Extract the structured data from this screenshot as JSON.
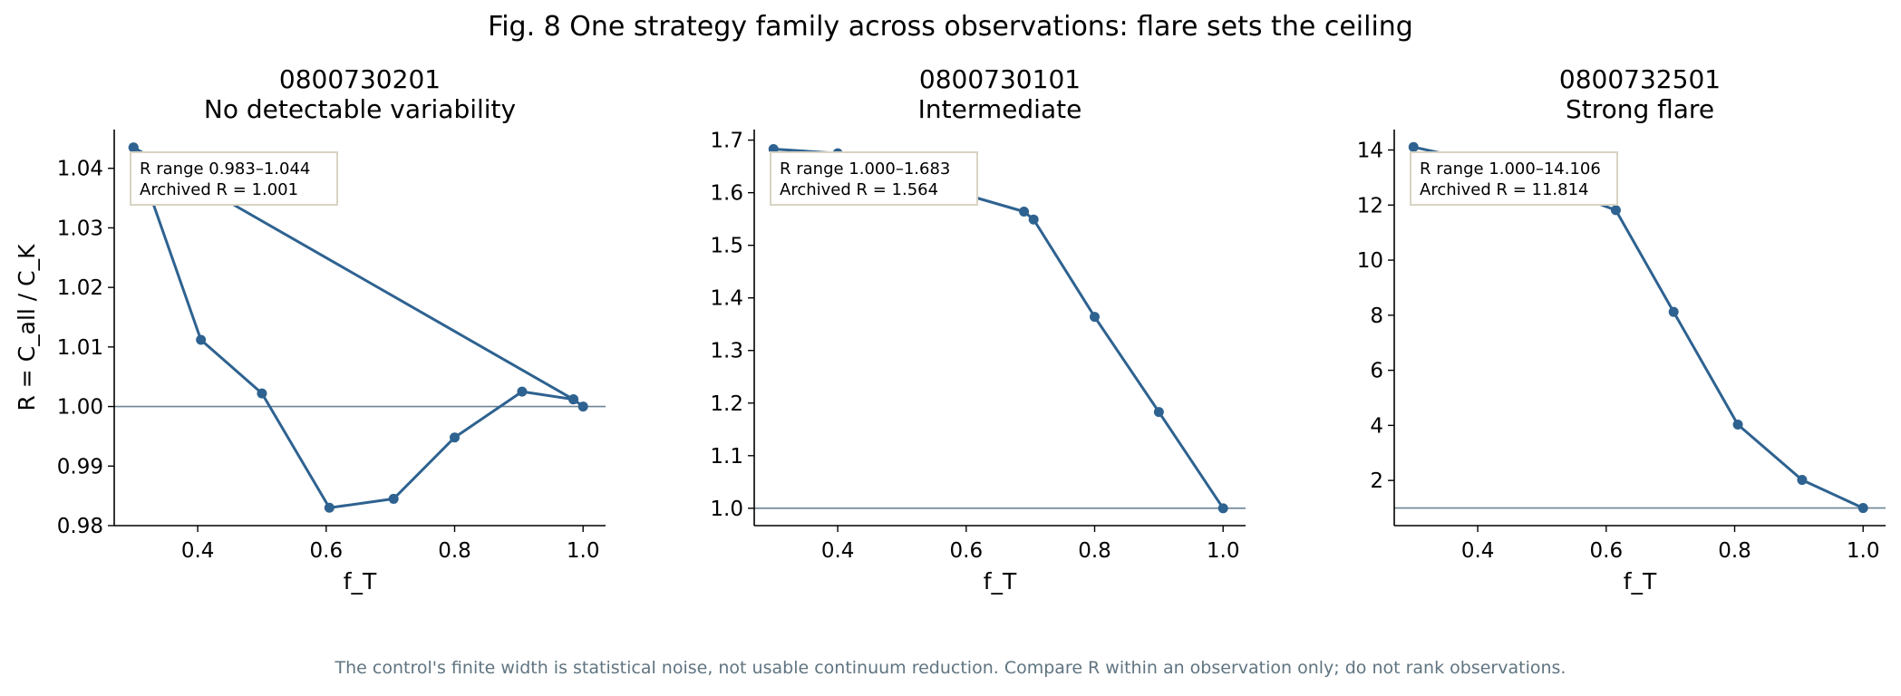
{
  "figure": {
    "title": "Fig. 8  One strategy family across observations: flare sets the ceiling",
    "footer": "The control's finite width is statistical noise, not usable continuum reduction. Compare R within an observation only; do not rank observations."
  },
  "colors": {
    "series": "#2e6290",
    "reference": "#6c8494",
    "annotation_border": "#d9d3c3"
  },
  "chart_data": [
    {
      "type": "line",
      "title": "0800730201",
      "subtitle": "No detectable variability",
      "xlabel": "f_T",
      "ylabel": "R = C_all / C_K",
      "xlim": [
        0.27,
        1.035
      ],
      "ylim": [
        0.98,
        1.0465
      ],
      "xticks": [
        0.4,
        0.6,
        0.8,
        1.0
      ],
      "yticks": [
        0.98,
        0.99,
        1.0,
        1.01,
        1.02,
        1.03,
        1.04
      ],
      "ytick_decimals": 2,
      "reference_y": 1.0,
      "annotation": [
        "R range 0.983–1.044",
        "Archived R = 1.001"
      ],
      "series": [
        {
          "x": [
            0.3,
            0.405,
            0.5,
            0.605,
            0.705,
            0.8,
            0.905,
            0.985,
            1.0,
            0.985,
            0.3
          ],
          "y": [
            1.0435,
            1.0112,
            1.0022,
            0.983,
            0.9845,
            0.9948,
            1.0025,
            1.0012,
            1.0,
            1.0012,
            1.0435
          ]
        }
      ]
    },
    {
      "type": "line",
      "title": "0800730101",
      "subtitle": "Intermediate",
      "xlabel": "f_T",
      "ylabel": "",
      "xlim": [
        0.27,
        1.035
      ],
      "ylim": [
        0.967,
        1.72
      ],
      "xticks": [
        0.4,
        0.6,
        0.8,
        1.0
      ],
      "yticks": [
        1.0,
        1.1,
        1.2,
        1.3,
        1.4,
        1.5,
        1.6,
        1.7
      ],
      "ytick_decimals": 1,
      "reference_y": 1.0,
      "annotation": [
        "R range 1.000–1.683",
        "Archived R = 1.564"
      ],
      "series": [
        {
          "x": [
            0.3,
            0.4,
            0.5,
            0.6,
            0.69,
            0.705,
            0.8,
            0.9,
            1.0
          ],
          "y": [
            1.683,
            1.675,
            1.64,
            1.596,
            1.564,
            1.549,
            1.364,
            1.183,
            1.0
          ]
        }
      ]
    },
    {
      "type": "line",
      "title": "0800732501",
      "subtitle": "Strong flare",
      "xlabel": "f_T",
      "ylabel": "",
      "xlim": [
        0.27,
        1.035
      ],
      "ylim": [
        0.36,
        14.74
      ],
      "xticks": [
        0.4,
        0.6,
        0.8,
        1.0
      ],
      "yticks": [
        2,
        4,
        6,
        8,
        10,
        12,
        14
      ],
      "ytick_decimals": 0,
      "reference_y": 1.0,
      "annotation": [
        "R range 1.000–14.106",
        "Archived R = 11.814"
      ],
      "series": [
        {
          "x": [
            0.3,
            0.4,
            0.5,
            0.615,
            0.705,
            0.805,
            0.905,
            1.0
          ],
          "y": [
            14.106,
            13.6,
            12.8,
            11.814,
            8.12,
            4.03,
            2.02,
            1.0
          ]
        }
      ]
    }
  ]
}
